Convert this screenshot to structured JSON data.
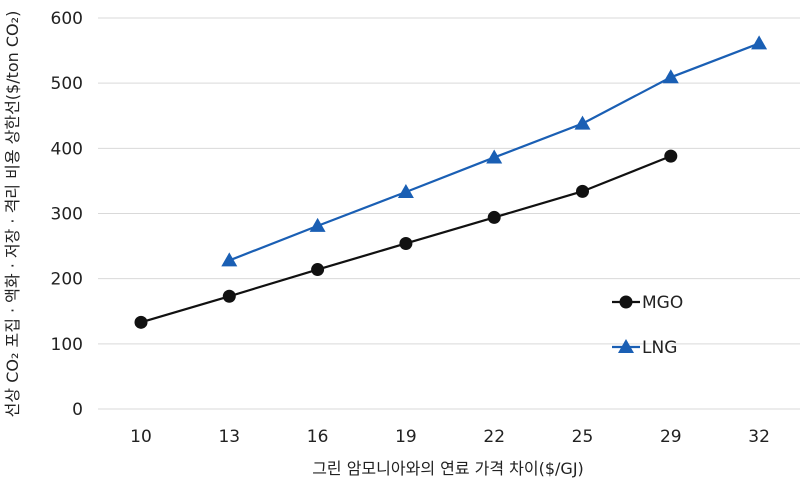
{
  "chart_data": {
    "type": "line",
    "title": "",
    "xlabel": "그린 암모니아와의 연료 가격 차이($/GJ)",
    "ylabel": "선상 CO₂ 포집 · 액화 · 저장 · 격리 비용 상한선($/ton CO₂)",
    "categories": [
      "10",
      "13",
      "16",
      "19",
      "22",
      "25",
      "29",
      "32"
    ],
    "yticks": [
      "0",
      "100",
      "200",
      "300",
      "400",
      "500",
      "600"
    ],
    "ylim": [
      0,
      600
    ],
    "grid": true,
    "legend_position": "right",
    "series": [
      {
        "name": "MGO",
        "color": "#111111",
        "marker": "circle",
        "values": [
          133,
          173,
          214,
          254,
          294,
          334,
          388,
          null
        ]
      },
      {
        "name": "LNG",
        "color": "#1a5fb4",
        "marker": "triangle",
        "values": [
          null,
          228,
          281,
          333,
          386,
          438,
          509,
          561
        ]
      }
    ]
  }
}
